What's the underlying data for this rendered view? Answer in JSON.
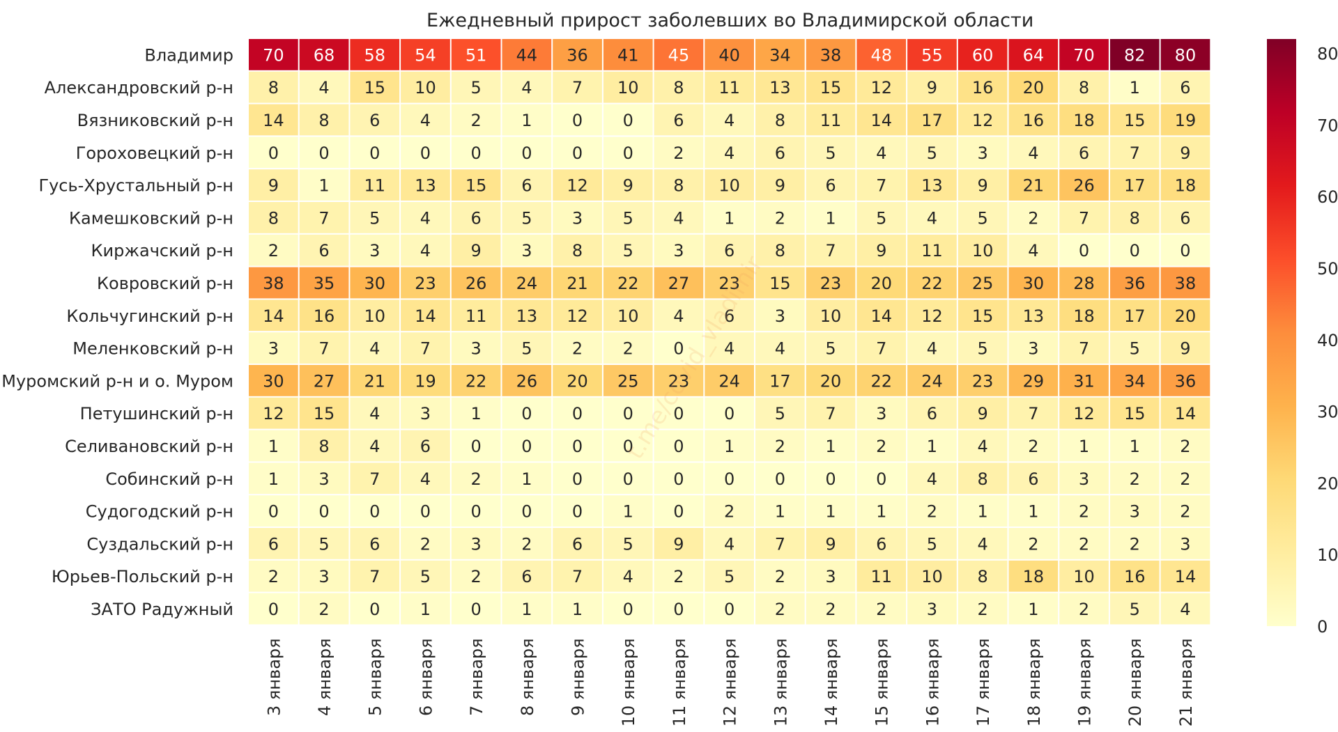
{
  "chart_data": {
    "type": "heatmap",
    "title": "Ежедневный прирост заболевших во Владимирской области",
    "colormap": "YlOrRd",
    "vmin": 0,
    "vmax": 82,
    "colorbar_ticks": [
      "0",
      "10",
      "20",
      "30",
      "40",
      "50",
      "60",
      "70",
      "80"
    ],
    "watermark": "t.me/covid_vladimir",
    "columns": [
      "3 января",
      "4 января",
      "5 января",
      "6 января",
      "7 января",
      "8 января",
      "9 января",
      "10 января",
      "11 января",
      "12 января",
      "13 января",
      "14 января",
      "15 января",
      "16 января",
      "17 января",
      "18 января",
      "19 января",
      "20 января",
      "21 января"
    ],
    "rows": [
      {
        "name": "Владимир",
        "values": [
          70,
          68,
          58,
          54,
          51,
          44,
          36,
          41,
          45,
          40,
          34,
          38,
          48,
          55,
          60,
          64,
          70,
          82,
          80
        ]
      },
      {
        "name": "Александровский р-н",
        "values": [
          8,
          4,
          15,
          10,
          5,
          4,
          7,
          10,
          8,
          11,
          13,
          15,
          12,
          9,
          16,
          20,
          8,
          1,
          6
        ]
      },
      {
        "name": "Вязниковский р-н",
        "values": [
          14,
          8,
          6,
          4,
          2,
          1,
          0,
          0,
          6,
          4,
          8,
          11,
          14,
          17,
          12,
          16,
          18,
          15,
          19
        ]
      },
      {
        "name": "Гороховецкий р-н",
        "values": [
          0,
          0,
          0,
          0,
          0,
          0,
          0,
          0,
          2,
          4,
          6,
          5,
          4,
          5,
          3,
          4,
          6,
          7,
          9
        ]
      },
      {
        "name": "Гусь-Хрустальный р-н",
        "values": [
          9,
          1,
          11,
          13,
          15,
          6,
          12,
          9,
          8,
          10,
          9,
          6,
          7,
          13,
          9,
          21,
          26,
          17,
          18
        ]
      },
      {
        "name": "Камешковский р-н",
        "values": [
          8,
          7,
          5,
          4,
          6,
          5,
          3,
          5,
          4,
          1,
          2,
          1,
          5,
          4,
          5,
          2,
          7,
          8,
          6
        ]
      },
      {
        "name": "Киржачский р-н",
        "values": [
          2,
          6,
          3,
          4,
          9,
          3,
          8,
          5,
          3,
          6,
          8,
          7,
          9,
          11,
          10,
          4,
          0,
          0,
          0
        ]
      },
      {
        "name": "Ковровский р-н",
        "values": [
          38,
          35,
          30,
          23,
          26,
          24,
          21,
          22,
          27,
          23,
          15,
          23,
          20,
          22,
          25,
          30,
          28,
          36,
          38
        ]
      },
      {
        "name": "Кольчугинский р-н",
        "values": [
          14,
          16,
          10,
          14,
          11,
          13,
          12,
          10,
          4,
          6,
          3,
          10,
          14,
          12,
          15,
          13,
          18,
          17,
          20
        ]
      },
      {
        "name": "Меленковский р-н",
        "values": [
          3,
          7,
          4,
          7,
          3,
          5,
          2,
          2,
          0,
          4,
          4,
          5,
          7,
          4,
          5,
          3,
          7,
          5,
          9
        ]
      },
      {
        "name": "Муромский р-н и о. Муром",
        "values": [
          30,
          27,
          21,
          19,
          22,
          26,
          20,
          25,
          23,
          24,
          17,
          20,
          22,
          24,
          23,
          29,
          31,
          34,
          36
        ]
      },
      {
        "name": "Петушинский р-н",
        "values": [
          12,
          15,
          4,
          3,
          1,
          0,
          0,
          0,
          0,
          0,
          5,
          7,
          3,
          6,
          9,
          7,
          12,
          15,
          14
        ]
      },
      {
        "name": "Селивановский р-н",
        "values": [
          1,
          8,
          4,
          6,
          0,
          0,
          0,
          0,
          0,
          1,
          2,
          1,
          2,
          1,
          4,
          2,
          1,
          1,
          2
        ]
      },
      {
        "name": "Собинский р-н",
        "values": [
          1,
          3,
          7,
          4,
          2,
          1,
          0,
          0,
          0,
          0,
          0,
          0,
          0,
          4,
          8,
          6,
          3,
          2,
          2
        ]
      },
      {
        "name": "Судогодский р-н",
        "values": [
          0,
          0,
          0,
          0,
          0,
          0,
          0,
          1,
          0,
          2,
          1,
          1,
          1,
          2,
          1,
          1,
          2,
          3,
          2
        ]
      },
      {
        "name": "Суздальский р-н",
        "values": [
          6,
          5,
          6,
          2,
          3,
          2,
          6,
          5,
          9,
          4,
          7,
          9,
          6,
          5,
          4,
          2,
          2,
          2,
          3
        ]
      },
      {
        "name": "Юрьев-Польский р-н",
        "values": [
          2,
          3,
          7,
          5,
          2,
          6,
          7,
          4,
          2,
          5,
          2,
          3,
          11,
          10,
          8,
          18,
          10,
          16,
          14
        ]
      },
      {
        "name": "ЗАТО Радужный",
        "values": [
          0,
          2,
          0,
          1,
          0,
          1,
          1,
          0,
          0,
          0,
          2,
          2,
          2,
          3,
          2,
          1,
          2,
          5,
          4
        ]
      }
    ]
  }
}
